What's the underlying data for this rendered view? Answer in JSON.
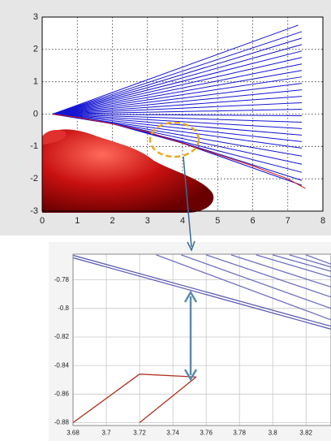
{
  "chart_data": [
    {
      "type": "line",
      "xlim": [
        0,
        8
      ],
      "ylim": [
        -3,
        3
      ],
      "xticks": [
        0,
        1,
        2,
        3,
        4,
        5,
        6,
        7,
        8
      ],
      "yticks": [
        -3,
        -2,
        -1,
        0,
        1,
        2,
        3
      ],
      "grid": true,
      "series": [
        {
          "color": "#1414d2",
          "x": [
            0.3,
            7.3
          ],
          "values": [
            0,
            2.75
          ]
        },
        {
          "color": "#1414d2",
          "x": [
            0.3,
            7.4
          ],
          "values": [
            0,
            2.55
          ]
        },
        {
          "color": "#1414d2",
          "x": [
            0.3,
            7.4
          ],
          "values": [
            0,
            2.35
          ]
        },
        {
          "color": "#1414d2",
          "x": [
            0.3,
            7.4
          ],
          "values": [
            0,
            2.15
          ]
        },
        {
          "color": "#1414d2",
          "x": [
            0.3,
            7.4
          ],
          "values": [
            0,
            1.95
          ]
        },
        {
          "color": "#1414d2",
          "x": [
            0.3,
            7.4
          ],
          "values": [
            0,
            1.75
          ]
        },
        {
          "color": "#1414d2",
          "x": [
            0.3,
            7.4
          ],
          "values": [
            0,
            1.55
          ]
        },
        {
          "color": "#1414d2",
          "x": [
            0.3,
            7.4
          ],
          "values": [
            0,
            1.35
          ]
        },
        {
          "color": "#1414d2",
          "x": [
            0.3,
            7.4
          ],
          "values": [
            0,
            1.15
          ]
        },
        {
          "color": "#1414d2",
          "x": [
            0.3,
            7.4
          ],
          "values": [
            0,
            0.95
          ]
        },
        {
          "color": "#1414d2",
          "x": [
            0.3,
            7.4
          ],
          "values": [
            0,
            0.75
          ]
        },
        {
          "color": "#1414d2",
          "x": [
            0.3,
            7.4
          ],
          "values": [
            0,
            0.55
          ]
        },
        {
          "color": "#1414d2",
          "x": [
            0.3,
            7.4
          ],
          "values": [
            0,
            0.35
          ]
        },
        {
          "color": "#1414d2",
          "x": [
            0.3,
            7.4
          ],
          "values": [
            0,
            0.15
          ]
        },
        {
          "color": "#1414d2",
          "x": [
            0.3,
            7.4
          ],
          "values": [
            0,
            -0.05
          ]
        },
        {
          "color": "#1414d2",
          "x": [
            0.3,
            7.4
          ],
          "values": [
            0,
            -0.25
          ]
        },
        {
          "color": "#1414d2",
          "x": [
            0.3,
            7.4
          ],
          "values": [
            0,
            -0.45
          ]
        },
        {
          "color": "#1414d2",
          "x": [
            0.3,
            7.4
          ],
          "values": [
            0,
            -0.65
          ]
        },
        {
          "color": "#1414d2",
          "x": [
            0.3,
            7.4
          ],
          "values": [
            0,
            -0.85
          ]
        },
        {
          "color": "#1414d2",
          "x": [
            0.3,
            7.4
          ],
          "values": [
            0,
            -1.05
          ]
        },
        {
          "color": "#1414d2",
          "x": [
            0.3,
            2,
            7.4
          ],
          "values": [
            0,
            -0.28,
            -1.3
          ]
        },
        {
          "color": "#1414d2",
          "x": [
            0.3,
            2,
            7.4
          ],
          "values": [
            0,
            -0.29,
            -1.55
          ]
        },
        {
          "color": "#1414d2",
          "x": [
            0.3,
            2,
            4,
            7.4
          ],
          "values": [
            0,
            -0.29,
            -0.85,
            -1.8
          ]
        },
        {
          "color": "#1414d2",
          "x": [
            0.3,
            2,
            4,
            7.4
          ],
          "values": [
            0,
            -0.29,
            -0.88,
            -2.05
          ]
        },
        {
          "color": "#1414d2",
          "x": [
            0.3,
            2,
            4,
            7.4
          ],
          "values": [
            0,
            -0.3,
            -0.9,
            -2.2
          ]
        },
        {
          "color": "#d01818",
          "x": [
            0.3,
            1,
            2,
            3,
            4,
            5,
            6,
            7,
            7.5
          ],
          "values": [
            0,
            -0.1,
            -0.3,
            -0.55,
            -0.9,
            -1.25,
            -1.6,
            -2.0,
            -2.3
          ]
        }
      ]
    },
    {
      "type": "line",
      "xlim": [
        3.68,
        3.835
      ],
      "ylim": [
        -0.882,
        -0.762
      ],
      "xticks": [
        3.68,
        3.7,
        3.72,
        3.74,
        3.76,
        3.78,
        3.8,
        3.82
      ],
      "yticks": [
        -0.88,
        -0.86,
        -0.84,
        -0.82,
        -0.8,
        -0.78
      ],
      "grid": true,
      "series": [
        {
          "color": "#5c5cb4",
          "x": [
            3.68,
            3.835
          ],
          "values": [
            -0.7628,
            -0.8125
          ]
        },
        {
          "color": "#5c5cb4",
          "x": [
            3.68,
            3.835
          ],
          "values": [
            -0.7645,
            -0.8145
          ]
        },
        {
          "color": "#7070c0",
          "x": [
            3.73,
            3.835
          ],
          "values": [
            -0.7625,
            -0.808
          ]
        },
        {
          "color": "#7070c0",
          "x": [
            3.745,
            3.835
          ],
          "values": [
            -0.7625,
            -0.8
          ]
        },
        {
          "color": "#7070c0",
          "x": [
            3.76,
            3.835
          ],
          "values": [
            -0.7625,
            -0.792
          ]
        },
        {
          "color": "#7070c0",
          "x": [
            3.775,
            3.835
          ],
          "values": [
            -0.7625,
            -0.785
          ]
        },
        {
          "color": "#7070c0",
          "x": [
            3.79,
            3.835
          ],
          "values": [
            -0.7625,
            -0.778
          ]
        },
        {
          "color": "#7070c0",
          "x": [
            3.8,
            3.835
          ],
          "values": [
            -0.7625,
            -0.774
          ]
        },
        {
          "color": "#7070c0",
          "x": [
            3.81,
            3.835
          ],
          "values": [
            -0.7625,
            -0.771
          ]
        },
        {
          "color": "#7070c0",
          "x": [
            3.82,
            3.835
          ],
          "values": [
            -0.7625,
            -0.769
          ]
        },
        {
          "color": "#b03020",
          "x": [
            3.68,
            3.72,
            3.754
          ],
          "values": [
            -0.88,
            -0.846,
            -0.848
          ]
        },
        {
          "color": "#b03020",
          "x": [
            3.72,
            3.754
          ],
          "values": [
            -0.88,
            -0.848
          ]
        }
      ]
    }
  ]
}
